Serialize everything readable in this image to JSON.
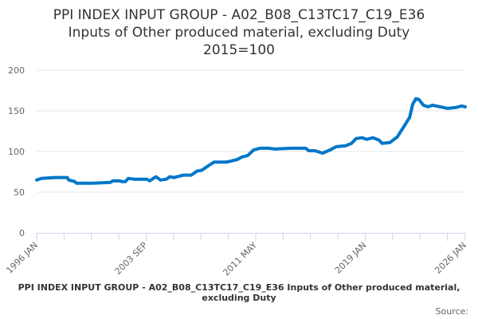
{
  "chart_data": {
    "type": "line",
    "title": [
      "PPI INDEX INPUT GROUP - A02_B08_C13TC17_C19_E36",
      "Inputs of Other produced material, excluding Duty",
      "2015=100"
    ],
    "xlabel": "",
    "ylabel": "",
    "ylim": [
      0,
      200
    ],
    "xlim": [
      1996.0,
      2026.0
    ],
    "y_ticks": [
      0,
      50,
      100,
      150,
      200
    ],
    "x_tick_labels": [
      {
        "label": "1996 JAN",
        "x": 1996.0
      },
      {
        "label": "2003 SEP",
        "x": 2003.667
      },
      {
        "label": "2011 MAY",
        "x": 2011.333
      },
      {
        "label": "2019 JAN",
        "x": 2019.0
      },
      {
        "label": "2026 JAN",
        "x": 2026.0
      }
    ],
    "x_minor_tick_interval_months": 23,
    "grid": true,
    "series": [
      {
        "name": "PPI Index",
        "color": "#0077c8",
        "x": [
          1996.0,
          1996.32,
          1997.28,
          1998.14,
          1998.25,
          1998.67,
          1998.78,
          1999.85,
          2001.14,
          2001.35,
          2001.78,
          2001.99,
          2002.21,
          2002.42,
          2002.85,
          2003.28,
          2003.7,
          2003.92,
          2004.35,
          2004.67,
          2005.09,
          2005.31,
          2005.63,
          2006.27,
          2006.81,
          2007.23,
          2007.56,
          2007.98,
          2008.41,
          2009.27,
          2010.02,
          2010.34,
          2010.77,
          2011.19,
          2011.62,
          2012.26,
          2012.69,
          2013.76,
          2014.83,
          2015.05,
          2015.47,
          2016.01,
          2016.54,
          2016.97,
          2017.61,
          2018.04,
          2018.36,
          2018.79,
          2019.11,
          2019.54,
          2019.97,
          2020.18,
          2020.72,
          2021.25,
          2021.68,
          2022.11,
          2022.32,
          2022.54,
          2022.75,
          2023.07,
          2023.39,
          2023.71,
          2024.25,
          2024.78,
          2025.32,
          2025.74,
          2026.0
        ],
        "values": [
          65,
          67,
          68,
          68,
          65,
          63,
          61,
          61,
          62,
          64,
          64,
          63,
          63,
          67,
          66,
          66,
          66,
          64,
          69,
          65,
          66,
          69,
          68,
          71,
          71,
          76,
          77,
          82,
          87,
          87,
          90,
          93,
          95,
          102,
          104,
          104,
          103,
          104,
          104,
          101,
          101,
          98,
          102,
          106,
          107,
          110,
          116,
          117,
          115,
          117,
          114,
          110,
          111,
          118,
          130,
          142,
          158,
          165,
          164,
          157,
          155,
          157,
          155,
          153,
          154,
          156,
          155
        ]
      }
    ]
  },
  "footer": {
    "text": "PPI INDEX INPUT GROUP - A02_B08_C13TC17_C19_E36 Inputs of Other produced material, excluding Duty",
    "source_label": "Source:"
  }
}
